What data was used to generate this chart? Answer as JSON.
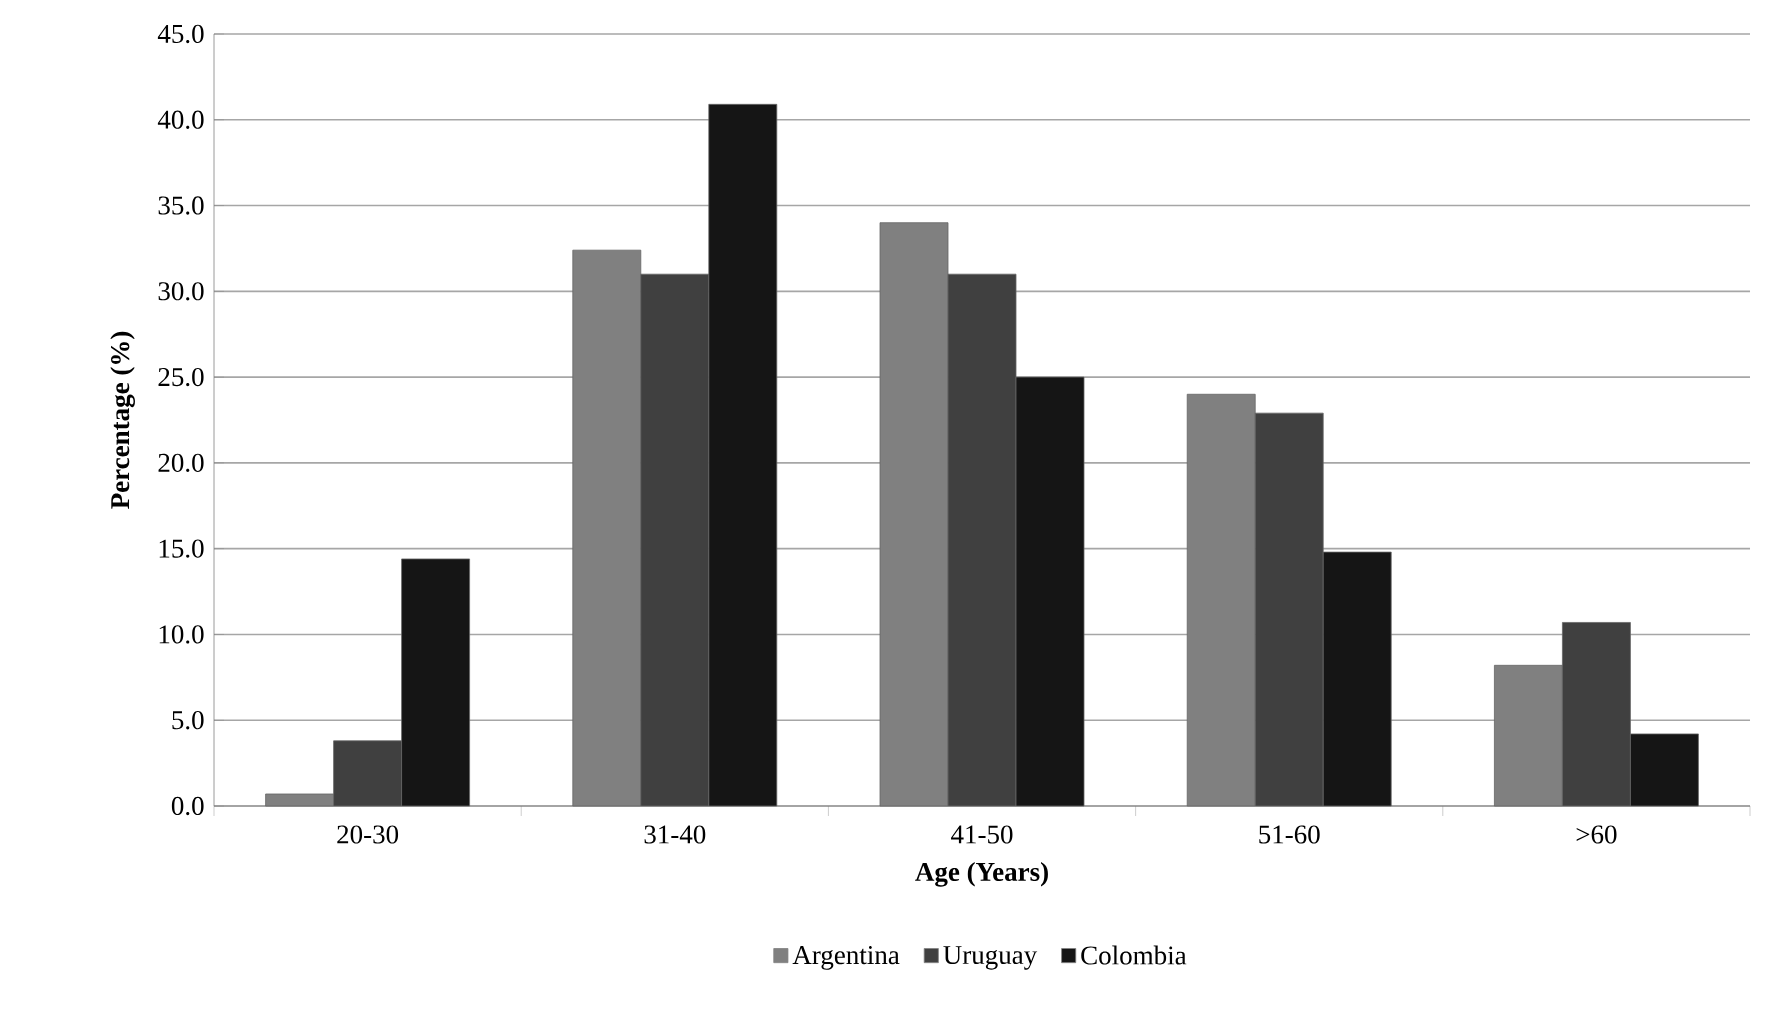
{
  "chart_data": {
    "type": "bar",
    "xlabel": "Age (Years)",
    "ylabel": "Percentage (%)",
    "categories": [
      "20-30",
      "31-40",
      "41-50",
      "51-60",
      ">60"
    ],
    "series": [
      {
        "name": "Argentina",
        "color": "#808080",
        "values": [
          0.7,
          32.4,
          34,
          24,
          8.2
        ]
      },
      {
        "name": "Uruguay",
        "color": "#404040",
        "values": [
          3.8,
          31,
          31,
          22.9,
          10.7
        ]
      },
      {
        "name": "Colombia",
        "color": "#151515",
        "values": [
          14.4,
          40.9,
          25,
          14.8,
          4.2
        ]
      }
    ],
    "ylim": [
      0,
      45
    ],
    "yticks": [
      {
        "value": 0,
        "label": "0.0"
      },
      {
        "value": 5,
        "label": "5.0"
      },
      {
        "value": 10,
        "label": "10.0"
      },
      {
        "value": 15,
        "label": "15.0"
      },
      {
        "value": 20,
        "label": "20.0"
      },
      {
        "value": 25,
        "label": "25.0"
      },
      {
        "value": 30,
        "label": "30.0"
      },
      {
        "value": 35,
        "label": "35.0"
      },
      {
        "value": 40,
        "label": "40.0"
      },
      {
        "value": 45,
        "label": "45.0"
      }
    ],
    "grid": "y",
    "legend": "bottom"
  }
}
